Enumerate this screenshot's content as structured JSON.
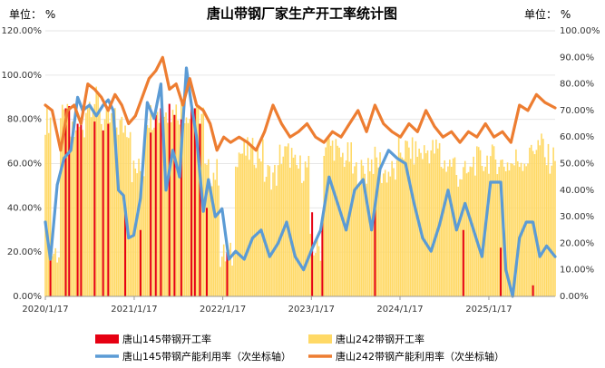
{
  "chart_data": {
    "type": "bar+line",
    "title": "唐山带钢厂家生产开工率统计图",
    "left_unit": "单位：  %",
    "right_unit": "单位：  %",
    "y_left": {
      "min": 0,
      "max": 120,
      "ticks": [
        "0.00%",
        "20.00%",
        "40.00%",
        "60.00%",
        "80.00%",
        "100.00%",
        "120.00%"
      ]
    },
    "y_right": {
      "min": 0,
      "max": 100,
      "ticks": [
        "0.00%",
        "10.00%",
        "20.00%",
        "30.00%",
        "40.00%",
        "50.00%",
        "60.00%",
        "70.00%",
        "80.00%",
        "90.00%",
        "100.00%"
      ]
    },
    "x_tick_labels": [
      "2020/1/17",
      "2021/1/17",
      "2022/1/17",
      "2023/1/17",
      "2024/1/17",
      "2025/1/17"
    ],
    "x_range": [
      "2020/1/17",
      "2025/10/17"
    ],
    "series": [
      {
        "name": "唐山145带钢开工率",
        "type": "bar",
        "axis": "left",
        "color": "#e60012",
        "points": [
          [
            "2020/2/7",
            18
          ],
          [
            "2020/4/10",
            85
          ],
          [
            "2020/4/24",
            86
          ],
          [
            "2020/5/29",
            78
          ],
          [
            "2020/6/12",
            80
          ],
          [
            "2020/8/7",
            79
          ],
          [
            "2020/9/11",
            75
          ],
          [
            "2020/10/2",
            78
          ],
          [
            "2020/12/11",
            38
          ],
          [
            "2021/2/12",
            30
          ],
          [
            "2021/3/26",
            74
          ],
          [
            "2021/4/16",
            82
          ],
          [
            "2021/5/7",
            85
          ],
          [
            "2021/6/11",
            87
          ],
          [
            "2021/7/2",
            82
          ],
          [
            "2021/7/30",
            80
          ],
          [
            "2021/9/10",
            88
          ],
          [
            "2021/9/24",
            85
          ],
          [
            "2021/10/15",
            78
          ],
          [
            "2021/11/12",
            40
          ],
          [
            "2022/2/4",
            20
          ],
          [
            "2023/1/20",
            38
          ],
          [
            "2023/3/3",
            35
          ],
          [
            "2023/10/6",
            40
          ],
          [
            "2024/10/4",
            30
          ],
          [
            "2025/3/7",
            22
          ],
          [
            "2025/7/18",
            5
          ]
        ]
      },
      {
        "name": "唐山242带钢开工率",
        "type": "bar",
        "axis": "left",
        "color": "#ffd966",
        "points": [
          [
            "2020/1/17",
            80
          ],
          [
            "2020/2/14",
            20
          ],
          [
            "2020/3/20",
            80
          ],
          [
            "2020/5/1",
            73
          ],
          [
            "2020/7/3",
            88
          ],
          [
            "2020/9/4",
            79
          ],
          [
            "2020/11/6",
            77
          ],
          [
            "2021/1/8",
            57
          ],
          [
            "2021/3/5",
            82
          ],
          [
            "2021/5/7",
            83
          ],
          [
            "2021/7/9",
            84
          ],
          [
            "2021/9/3",
            82
          ],
          [
            "2021/11/5",
            56
          ],
          [
            "2022/1/7",
            18
          ],
          [
            "2022/3/11",
            65
          ],
          [
            "2022/5/6",
            65
          ],
          [
            "2022/7/8",
            55
          ],
          [
            "2022/9/9",
            64
          ],
          [
            "2022/11/4",
            58
          ],
          [
            "2023/1/13",
            22
          ],
          [
            "2023/3/10",
            68
          ],
          [
            "2023/5/5",
            63
          ],
          [
            "2023/7/7",
            56
          ],
          [
            "2023/9/8",
            61
          ],
          [
            "2023/11/3",
            56
          ],
          [
            "2024/1/12",
            66
          ],
          [
            "2024/3/8",
            65
          ],
          [
            "2024/5/10",
            66
          ],
          [
            "2024/7/5",
            60
          ],
          [
            "2024/9/6",
            55
          ],
          [
            "2024/11/8",
            61
          ],
          [
            "2025/1/10",
            62
          ],
          [
            "2025/3/7",
            60
          ],
          [
            "2025/5/9",
            62
          ],
          [
            "2025/7/11",
            68
          ],
          [
            "2025/9/5",
            62
          ],
          [
            "2025/10/17",
            66
          ]
        ]
      },
      {
        "name": "唐山145带钢产能利用率（次坐标轴）",
        "type": "line",
        "axis": "right",
        "color": "#5b9bd5",
        "points": [
          [
            "2020/1/17",
            28
          ],
          [
            "2020/2/7",
            14
          ],
          [
            "2020/3/6",
            42
          ],
          [
            "2020/4/3",
            52
          ],
          [
            "2020/5/1",
            55
          ],
          [
            "2020/5/29",
            75
          ],
          [
            "2020/6/19",
            70
          ],
          [
            "2020/7/17",
            72
          ],
          [
            "2020/8/14",
            68
          ],
          [
            "2020/9/11",
            72
          ],
          [
            "2020/10/2",
            74
          ],
          [
            "2020/10/23",
            70
          ],
          [
            "2020/11/13",
            40
          ],
          [
            "2020/12/4",
            38
          ],
          [
            "2020/12/25",
            22
          ],
          [
            "2021/1/15",
            23
          ],
          [
            "2021/2/12",
            37
          ],
          [
            "2021/3/12",
            73
          ],
          [
            "2021/4/9",
            67
          ],
          [
            "2021/5/7",
            80
          ],
          [
            "2021/5/28",
            40
          ],
          [
            "2021/6/25",
            55
          ],
          [
            "2021/7/23",
            45
          ],
          [
            "2021/8/20",
            86
          ],
          [
            "2021/9/10",
            72
          ],
          [
            "2021/10/1",
            60
          ],
          [
            "2021/10/29",
            32
          ],
          [
            "2021/11/19",
            44
          ],
          [
            "2021/12/17",
            30
          ],
          [
            "2022/1/14",
            33
          ],
          [
            "2022/2/11",
            14
          ],
          [
            "2022/3/11",
            17
          ],
          [
            "2022/4/15",
            14
          ],
          [
            "2022/5/20",
            22
          ],
          [
            "2022/6/24",
            25
          ],
          [
            "2022/7/29",
            15
          ],
          [
            "2022/9/2",
            20
          ],
          [
            "2022/10/7",
            28
          ],
          [
            "2022/11/11",
            15
          ],
          [
            "2022/12/16",
            10
          ],
          [
            "2023/1/20",
            18
          ],
          [
            "2023/2/24",
            25
          ],
          [
            "2023/3/31",
            45
          ],
          [
            "2023/5/5",
            35
          ],
          [
            "2023/6/9",
            25
          ],
          [
            "2023/7/14",
            40
          ],
          [
            "2023/8/18",
            44
          ],
          [
            "2023/9/22",
            25
          ],
          [
            "2023/10/27",
            48
          ],
          [
            "2023/12/1",
            55
          ],
          [
            "2024/1/5",
            52
          ],
          [
            "2024/2/9",
            50
          ],
          [
            "2024/3/15",
            35
          ],
          [
            "2024/4/19",
            22
          ],
          [
            "2024/5/24",
            17
          ],
          [
            "2024/6/28",
            27
          ],
          [
            "2024/8/2",
            40
          ],
          [
            "2024/9/6",
            25
          ],
          [
            "2024/10/11",
            35
          ],
          [
            "2024/11/15",
            25
          ],
          [
            "2024/12/20",
            15
          ],
          [
            "2025/1/24",
            43
          ],
          [
            "2025/3/7",
            43
          ],
          [
            "2025/3/28",
            10
          ],
          [
            "2025/4/25",
            0
          ],
          [
            "2025/5/23",
            22
          ],
          [
            "2025/6/20",
            28
          ],
          [
            "2025/7/18",
            28
          ],
          [
            "2025/8/15",
            15
          ],
          [
            "2025/9/12",
            19
          ],
          [
            "2025/10/17",
            15
          ]
        ]
      },
      {
        "name": "唐山242带钢产能利用率（次坐标轴）",
        "type": "line",
        "axis": "right",
        "color": "#ed7d31",
        "points": [
          [
            "2020/1/17",
            72
          ],
          [
            "2020/2/14",
            70
          ],
          [
            "2020/3/20",
            55
          ],
          [
            "2020/4/17",
            70
          ],
          [
            "2020/5/15",
            72
          ],
          [
            "2020/6/12",
            65
          ],
          [
            "2020/7/10",
            80
          ],
          [
            "2020/8/7",
            78
          ],
          [
            "2020/9/4",
            75
          ],
          [
            "2020/10/2",
            70
          ],
          [
            "2020/10/30",
            76
          ],
          [
            "2020/11/27",
            72
          ],
          [
            "2020/12/25",
            65
          ],
          [
            "2021/1/22",
            68
          ],
          [
            "2021/2/19",
            75
          ],
          [
            "2021/3/19",
            82
          ],
          [
            "2021/4/16",
            85
          ],
          [
            "2021/5/14",
            90
          ],
          [
            "2021/6/11",
            78
          ],
          [
            "2021/7/9",
            80
          ],
          [
            "2021/8/6",
            72
          ],
          [
            "2021/9/3",
            82
          ],
          [
            "2021/10/1",
            72
          ],
          [
            "2021/10/29",
            70
          ],
          [
            "2021/11/26",
            65
          ],
          [
            "2021/12/24",
            55
          ],
          [
            "2022/1/21",
            60
          ],
          [
            "2022/2/18",
            58
          ],
          [
            "2022/3/25",
            60
          ],
          [
            "2022/4/29",
            58
          ],
          [
            "2022/6/3",
            55
          ],
          [
            "2022/7/8",
            62
          ],
          [
            "2022/8/12",
            72
          ],
          [
            "2022/9/16",
            65
          ],
          [
            "2022/10/21",
            60
          ],
          [
            "2022/11/25",
            62
          ],
          [
            "2022/12/30",
            65
          ],
          [
            "2023/2/3",
            60
          ],
          [
            "2023/3/10",
            58
          ],
          [
            "2023/4/14",
            62
          ],
          [
            "2023/5/19",
            60
          ],
          [
            "2023/6/23",
            65
          ],
          [
            "2023/7/28",
            70
          ],
          [
            "2023/9/1",
            62
          ],
          [
            "2023/10/6",
            72
          ],
          [
            "2023/11/10",
            65
          ],
          [
            "2023/12/15",
            62
          ],
          [
            "2024/1/19",
            60
          ],
          [
            "2024/2/23",
            65
          ],
          [
            "2024/3/29",
            62
          ],
          [
            "2024/5/3",
            70
          ],
          [
            "2024/6/7",
            64
          ],
          [
            "2024/7/12",
            60
          ],
          [
            "2024/8/16",
            62
          ],
          [
            "2024/9/20",
            58
          ],
          [
            "2024/10/25",
            62
          ],
          [
            "2024/11/29",
            60
          ],
          [
            "2025/1/3",
            65
          ],
          [
            "2025/2/7",
            60
          ],
          [
            "2025/3/14",
            62
          ],
          [
            "2025/4/18",
            58
          ],
          [
            "2025/5/23",
            72
          ],
          [
            "2025/6/27",
            70
          ],
          [
            "2025/8/1",
            76
          ],
          [
            "2025/9/5",
            73
          ],
          [
            "2025/10/17",
            71
          ]
        ]
      }
    ],
    "legend": [
      "唐山145带钢开工率",
      "唐山242带钢开工率",
      "唐山145带钢产能利用率（次坐标轴）",
      "唐山242带钢产能利用率（次坐标轴）"
    ]
  }
}
